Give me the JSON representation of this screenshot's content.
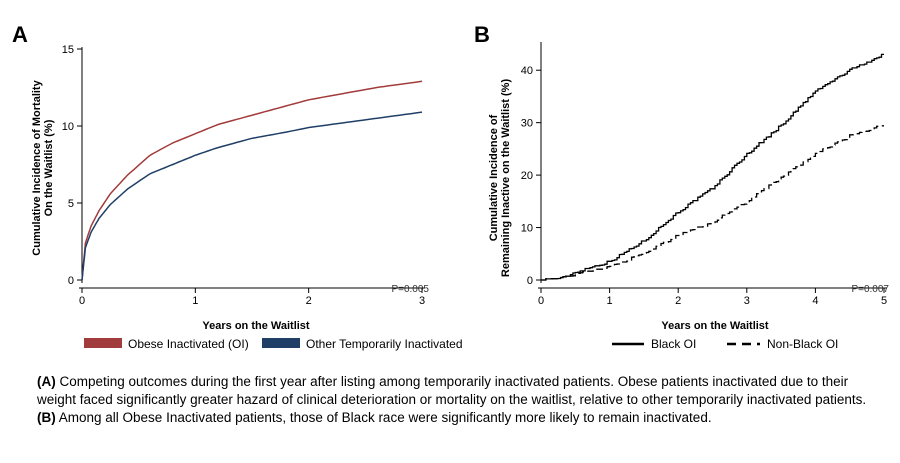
{
  "chart_data": [
    {
      "panel": "A",
      "type": "line",
      "xlabel": "Years on the Waitlist",
      "ylabel": [
        "Cumulative Incidence of Mortality",
        "On the Waitlist (%)"
      ],
      "xlim": [
        0,
        3
      ],
      "ylim": [
        0,
        15
      ],
      "xticks": [
        0,
        1,
        2,
        3
      ],
      "yticks": [
        0,
        5,
        10,
        15
      ],
      "annotation": "P=0.005",
      "legend_position": "bottom",
      "series": [
        {
          "name": "Obese Inactivated (OI)",
          "color": "#a23b3b",
          "x": [
            0,
            0.03,
            0.08,
            0.15,
            0.25,
            0.4,
            0.6,
            0.8,
            1.0,
            1.2,
            1.5,
            1.8,
            2.0,
            2.3,
            2.6,
            3.0
          ],
          "y": [
            0,
            2.4,
            3.5,
            4.5,
            5.6,
            6.8,
            8.1,
            8.9,
            9.5,
            10.1,
            10.7,
            11.3,
            11.7,
            12.1,
            12.5,
            12.9
          ]
        },
        {
          "name": "Other Temporarily Inactivated",
          "color": "#1f3f66",
          "x": [
            0,
            0.03,
            0.08,
            0.15,
            0.25,
            0.4,
            0.6,
            0.8,
            1.0,
            1.2,
            1.5,
            1.8,
            2.0,
            2.3,
            2.6,
            3.0
          ],
          "y": [
            0,
            2.1,
            3.1,
            4.0,
            4.9,
            5.9,
            6.9,
            7.5,
            8.1,
            8.6,
            9.2,
            9.6,
            9.9,
            10.2,
            10.5,
            10.9
          ]
        }
      ]
    },
    {
      "panel": "B",
      "type": "line",
      "xlabel": "Years on the Waitlist",
      "ylabel": [
        "Cumulative Incidence of",
        "Remaining Inactive on the Waitlist (%)"
      ],
      "xlim": [
        0,
        5
      ],
      "ylim": [
        0,
        45
      ],
      "xticks": [
        0,
        1,
        2,
        3,
        4,
        5
      ],
      "yticks": [
        0,
        10,
        20,
        30,
        40
      ],
      "annotation": "P=0.007",
      "legend_position": "bottom",
      "series": [
        {
          "name": "Black OI",
          "color": "#000000",
          "dash": "solid",
          "x": [
            0,
            0.3,
            0.5,
            1.0,
            1.5,
            2.0,
            2.5,
            3.0,
            3.5,
            4.0,
            4.5,
            5.0
          ],
          "y": [
            0,
            0.3,
            1.5,
            3.5,
            7.5,
            13.0,
            17.5,
            24.0,
            29.5,
            36.0,
            40.0,
            43.0
          ]
        },
        {
          "name": "Non-Black OI",
          "color": "#000000",
          "dash": "dashed",
          "x": [
            0,
            0.3,
            0.5,
            1.0,
            1.5,
            2.0,
            2.5,
            3.0,
            3.5,
            4.0,
            4.5,
            5.0
          ],
          "y": [
            0,
            0.3,
            1.0,
            2.5,
            5.0,
            8.5,
            11.0,
            15.0,
            19.5,
            24.0,
            27.5,
            29.5
          ]
        }
      ]
    }
  ],
  "caption": {
    "a_label": "(A)",
    "a_text": " Competing outcomes during the first year after listing among temporarily inactivated patients. Obese patients inactivated due to their weight faced significantly greater hazard of clinical deterioration or mortality on the waitlist, relative to other temporarily inactivated patients.",
    "b_label": "(B)",
    "b_text": " Among all Obese Inactivated patients, those of Black race were significantly more likely to remain inactivated."
  }
}
